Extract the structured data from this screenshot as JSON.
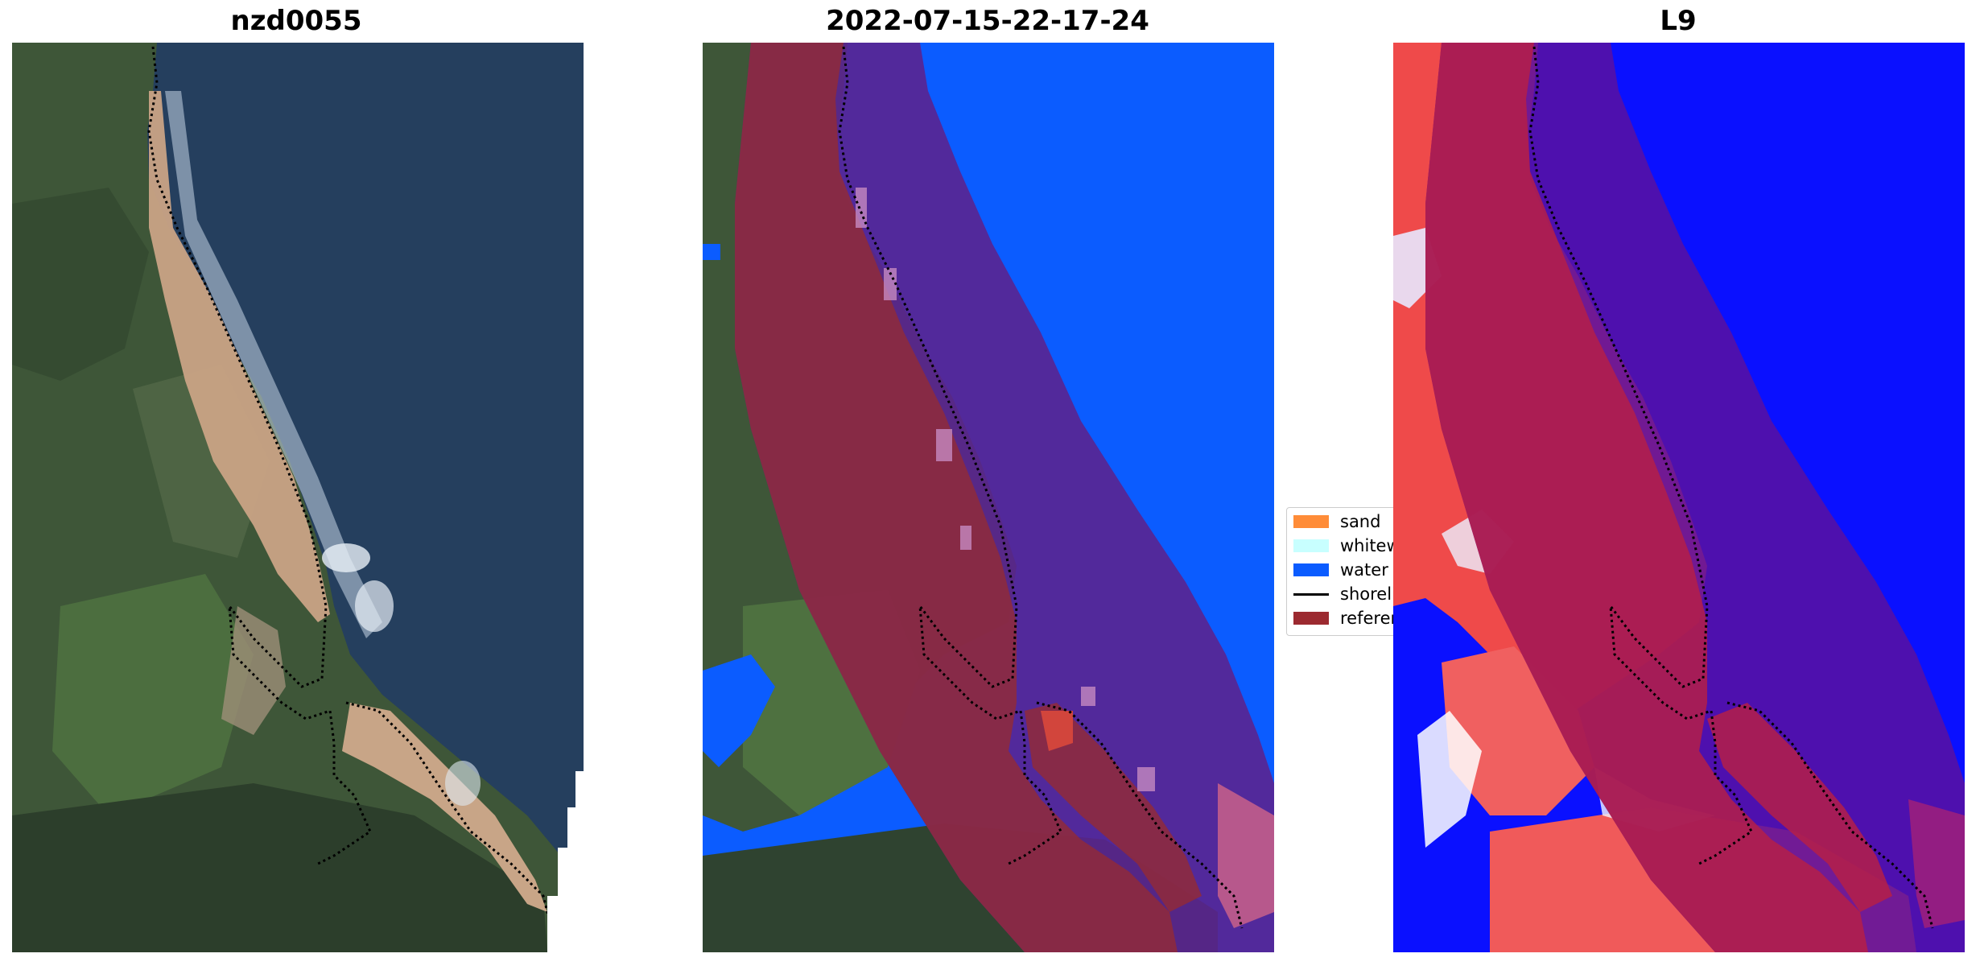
{
  "panels": [
    {
      "title": "nzd0055"
    },
    {
      "title": "2022-07-15-22-17-24"
    },
    {
      "title": "L9"
    }
  ],
  "legend": {
    "items": [
      {
        "label": "sand",
        "color": "#ff8c38"
      },
      {
        "label": "whitewater",
        "color": "#c8ffff"
      },
      {
        "label": "water",
        "color": "#0b5cff"
      },
      {
        "label": "shoreline",
        "color": "#000000"
      },
      {
        "label": "reference",
        "color": "#9c2a30"
      }
    ]
  },
  "colors": {
    "ocean_rgb": "#243f5e",
    "land_green": "#3f5a3a",
    "beach_sand": "#c9a385",
    "surf": "#cfdcea",
    "classified_water": "#0b5cff",
    "buffer_overlay": "#5a2390",
    "reference_overlay": "#8e2a3c",
    "index_red": "#f04848",
    "index_blue": "#0a10ff"
  }
}
